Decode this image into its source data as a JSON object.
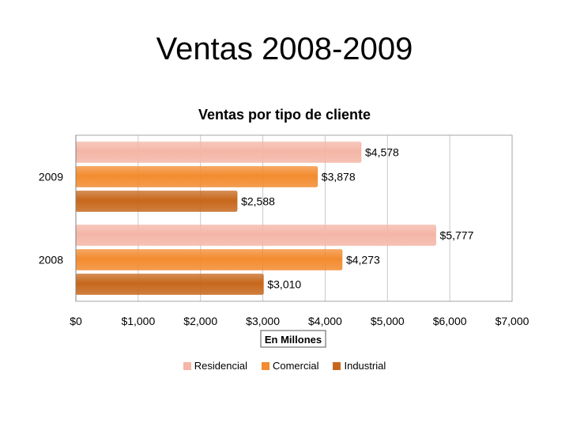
{
  "slide": {
    "title": "Ventas 2008-2009"
  },
  "chart_data": {
    "type": "bar",
    "orientation": "horizontal",
    "title": "Ventas por tipo de cliente",
    "xlabel": "En Millones",
    "ylabel": "",
    "categories": [
      "2009",
      "2008"
    ],
    "series": [
      {
        "name": "Residencial",
        "values": [
          4578,
          5777
        ],
        "labels": [
          "$4,578",
          "$5,777"
        ],
        "color": "#f4b6a6"
      },
      {
        "name": "Comercial",
        "values": [
          3878,
          4273
        ],
        "labels": [
          "$3,878",
          "$4,273"
        ],
        "color": "#f38b2f"
      },
      {
        "name": "Industrial",
        "values": [
          2588,
          3010
        ],
        "labels": [
          "$2,588",
          "$3,010"
        ],
        "color": "#c7671c"
      }
    ],
    "xlim": [
      0,
      7000
    ],
    "xticks": [
      0,
      1000,
      2000,
      3000,
      4000,
      5000,
      6000,
      7000
    ],
    "xtick_labels": [
      "$0",
      "$1,000",
      "$2,000",
      "$3,000",
      "$4,000",
      "$5,000",
      "$6,000",
      "$7,000"
    ],
    "grid": true,
    "legend_position": "bottom"
  }
}
